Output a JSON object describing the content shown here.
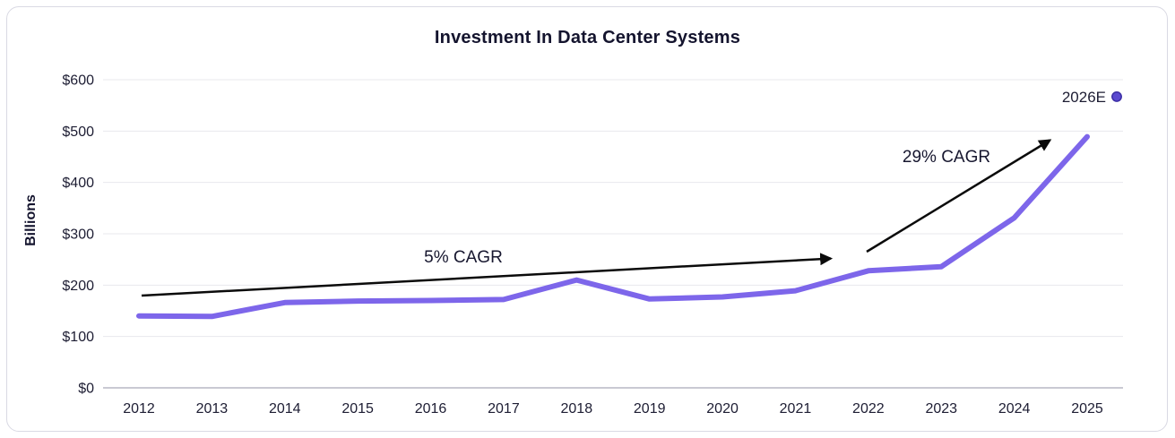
{
  "chart_data": {
    "type": "line",
    "title": "Investment In Data Center Systems",
    "ylabel": "Billions",
    "categories": [
      "2012",
      "2013",
      "2014",
      "2015",
      "2016",
      "2017",
      "2018",
      "2019",
      "2020",
      "2021",
      "2022",
      "2023",
      "2024",
      "2025"
    ],
    "series": [
      {
        "color": "#7d66ea",
        "values": [
          140,
          139,
          166,
          169,
          170,
          172,
          210,
          173,
          177,
          189,
          228,
          236,
          331,
          489
        ]
      }
    ],
    "estimate_point": {
      "label": "2026E",
      "value": 567,
      "color": "#5b4ad0"
    },
    "y_ticks": [
      {
        "label": "$0",
        "value": 0
      },
      {
        "label": "$100",
        "value": 100
      },
      {
        "label": "$200",
        "value": 200
      },
      {
        "label": "$300",
        "value": 300
      },
      {
        "label": "$400",
        "value": 400
      },
      {
        "label": "$500",
        "value": 500
      },
      {
        "label": "$600",
        "value": 600
      }
    ],
    "ylim": [
      0,
      600
    ],
    "grid": "horizontal",
    "legend_position": "none",
    "annotations": [
      {
        "text": "5% CAGR"
      },
      {
        "text": "29% CAGR"
      }
    ]
  },
  "colors": {
    "background": "#ffffff",
    "card_border": "#d9d9e3",
    "line": "#7d66ea",
    "estimate_dot": "#5b4ad0",
    "title_text": "#14142e",
    "tick_text": "#1d1d33",
    "gridline": "#e8e8ed",
    "axis_line": "#c9c9d3",
    "arrow": "#0b0b0b"
  }
}
